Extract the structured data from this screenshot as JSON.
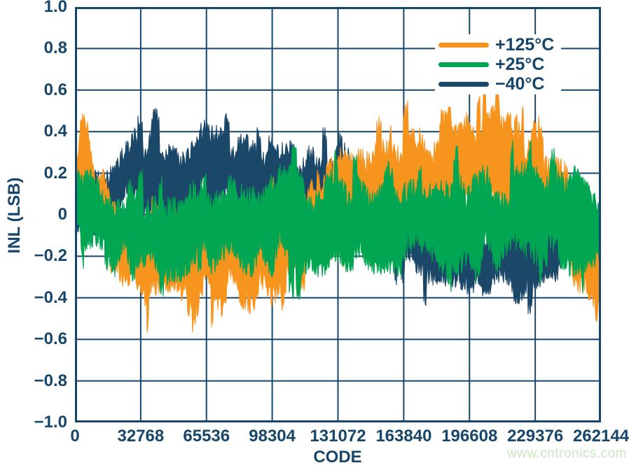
{
  "watermark": "www.cntronics.com",
  "colors": {
    "axis": "#17466B",
    "grid": "#17466B",
    "background": "#FFFFFF",
    "watermark": "#C9E7C2"
  },
  "chart_data": {
    "type": "line",
    "title": "",
    "xlabel": "CODE",
    "ylabel": "INL (LSB)",
    "xlim": [
      0,
      262144
    ],
    "ylim": [
      -1.0,
      1.0
    ],
    "grid": true,
    "legend_position": "top-right",
    "x_ticks": [
      0,
      32768,
      65536,
      98304,
      131072,
      163840,
      196608,
      229376,
      262144
    ],
    "x_tick_labels": [
      "0",
      "32768",
      "65536",
      "98304",
      "131072",
      "163840",
      "196608",
      "229376",
      "262144"
    ],
    "y_ticks": [
      1.0,
      0.8,
      0.6,
      0.4,
      0.2,
      0,
      -0.2,
      -0.4,
      -0.6,
      -0.8,
      -1.0
    ],
    "y_tick_labels": [
      "1.0",
      "0.8",
      "0.6",
      "0.4",
      "0.2",
      "0",
      "−0.2",
      "−0.4",
      "−0.6",
      "−0.8",
      "−1.0"
    ],
    "series": [
      {
        "name": "+125°C",
        "color": "#F7941E",
        "envelope_format": [
          "code",
          "center_lsb",
          "half_amplitude_lsb"
        ],
        "envelope": [
          [
            0,
            0.15,
            0.15
          ],
          [
            3000,
            0.3,
            0.28
          ],
          [
            6000,
            0.28,
            0.3
          ],
          [
            10000,
            0.1,
            0.22
          ],
          [
            16384,
            -0.02,
            0.2
          ],
          [
            24576,
            -0.16,
            0.27
          ],
          [
            32768,
            -0.2,
            0.28
          ],
          [
            40960,
            -0.22,
            0.32
          ],
          [
            49152,
            -0.2,
            0.28
          ],
          [
            57344,
            -0.24,
            0.32
          ],
          [
            65536,
            -0.2,
            0.28
          ],
          [
            73728,
            -0.22,
            0.3
          ],
          [
            81920,
            -0.17,
            0.28
          ],
          [
            90112,
            -0.2,
            0.3
          ],
          [
            98304,
            -0.17,
            0.28
          ],
          [
            106496,
            -0.14,
            0.27
          ],
          [
            114688,
            -0.1,
            0.26
          ],
          [
            122880,
            -0.03,
            0.25
          ],
          [
            131072,
            0.05,
            0.26
          ],
          [
            139264,
            0.12,
            0.28
          ],
          [
            147456,
            0.18,
            0.3
          ],
          [
            155648,
            0.22,
            0.32
          ],
          [
            163840,
            0.2,
            0.3
          ],
          [
            172032,
            0.22,
            0.31
          ],
          [
            180224,
            0.18,
            0.3
          ],
          [
            188416,
            0.22,
            0.31
          ],
          [
            196608,
            0.2,
            0.3
          ],
          [
            204800,
            0.22,
            0.32
          ],
          [
            212992,
            0.2,
            0.3
          ],
          [
            221184,
            0.22,
            0.31
          ],
          [
            229376,
            0.18,
            0.3
          ],
          [
            237568,
            0.12,
            0.3
          ],
          [
            245760,
            0.02,
            0.3
          ],
          [
            250000,
            -0.08,
            0.32
          ],
          [
            253952,
            -0.2,
            0.3
          ],
          [
            258048,
            -0.26,
            0.27
          ],
          [
            262144,
            -0.3,
            0.15
          ]
        ]
      },
      {
        "name": "+25°C",
        "color": "#00A651",
        "envelope_format": [
          "code",
          "center_lsb",
          "half_amplitude_lsb"
        ],
        "envelope": [
          [
            0,
            0.08,
            0.15
          ],
          [
            4096,
            0.02,
            0.22
          ],
          [
            8192,
            -0.02,
            0.25
          ],
          [
            16384,
            -0.05,
            0.27
          ],
          [
            32768,
            -0.05,
            0.28
          ],
          [
            49152,
            -0.06,
            0.28
          ],
          [
            65536,
            -0.04,
            0.28
          ],
          [
            81920,
            -0.05,
            0.29
          ],
          [
            98304,
            -0.03,
            0.3
          ],
          [
            114688,
            -0.05,
            0.28
          ],
          [
            131072,
            -0.04,
            0.28
          ],
          [
            147456,
            -0.05,
            0.29
          ],
          [
            163840,
            -0.04,
            0.3
          ],
          [
            180224,
            -0.06,
            0.3
          ],
          [
            188416,
            -0.08,
            0.32
          ],
          [
            196608,
            -0.04,
            0.3
          ],
          [
            212992,
            -0.04,
            0.3
          ],
          [
            229376,
            0.0,
            0.32
          ],
          [
            237568,
            -0.02,
            0.32
          ],
          [
            245760,
            -0.03,
            0.3
          ],
          [
            253952,
            0.0,
            0.3
          ],
          [
            258048,
            -0.05,
            0.28
          ],
          [
            262144,
            -0.08,
            0.24
          ]
        ]
      },
      {
        "name": "−40°C",
        "color": "#1B4769",
        "envelope_format": [
          "code",
          "center_lsb",
          "half_amplitude_lsb"
        ],
        "envelope": [
          [
            0,
            0.02,
            0.15
          ],
          [
            8192,
            0.06,
            0.2
          ],
          [
            16384,
            0.12,
            0.24
          ],
          [
            24576,
            0.17,
            0.26
          ],
          [
            32768,
            0.2,
            0.25
          ],
          [
            40960,
            0.19,
            0.25
          ],
          [
            49152,
            0.15,
            0.24
          ],
          [
            57344,
            0.16,
            0.26
          ],
          [
            65536,
            0.24,
            0.3
          ],
          [
            73728,
            0.22,
            0.28
          ],
          [
            81920,
            0.16,
            0.26
          ],
          [
            90112,
            0.15,
            0.26
          ],
          [
            98304,
            0.15,
            0.25
          ],
          [
            106496,
            0.13,
            0.25
          ],
          [
            114688,
            0.15,
            0.27
          ],
          [
            122880,
            0.14,
            0.28
          ],
          [
            131072,
            0.13,
            0.3
          ],
          [
            139264,
            0.05,
            0.26
          ],
          [
            147456,
            0.0,
            0.25
          ],
          [
            155648,
            -0.05,
            0.25
          ],
          [
            163840,
            -0.1,
            0.25
          ],
          [
            172032,
            -0.13,
            0.26
          ],
          [
            180224,
            -0.15,
            0.27
          ],
          [
            188416,
            -0.18,
            0.27
          ],
          [
            196608,
            -0.18,
            0.26
          ],
          [
            204800,
            -0.2,
            0.25
          ],
          [
            212992,
            -0.18,
            0.25
          ],
          [
            221184,
            -0.2,
            0.26
          ],
          [
            229376,
            -0.17,
            0.24
          ],
          [
            237568,
            -0.12,
            0.21
          ],
          [
            245760,
            -0.12,
            0.19
          ],
          [
            253952,
            -0.08,
            0.16
          ],
          [
            262144,
            -0.04,
            0.13
          ]
        ]
      }
    ]
  }
}
